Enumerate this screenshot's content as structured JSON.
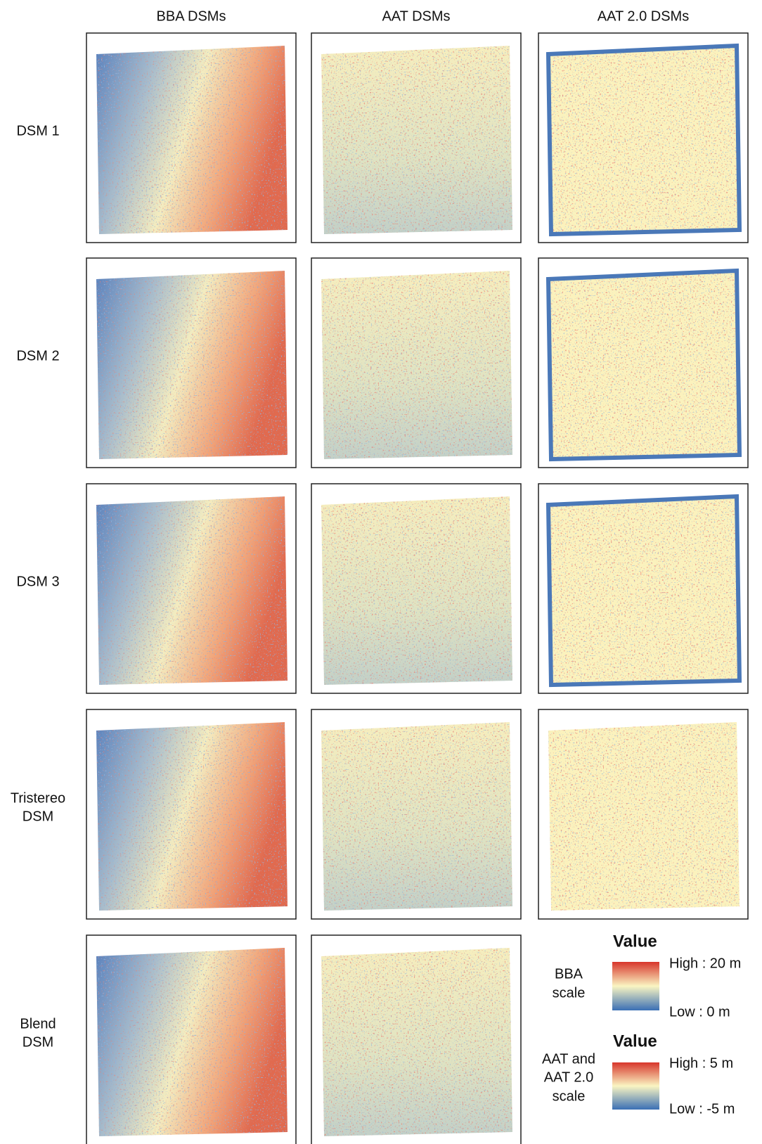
{
  "columns": [
    "BBA DSMs",
    "AAT DSMs",
    "AAT 2.0 DSMs"
  ],
  "rows": [
    {
      "label": [
        "DSM 1"
      ]
    },
    {
      "label": [
        "DSM 2"
      ]
    },
    {
      "label": [
        "DSM 3"
      ]
    },
    {
      "label": [
        "Tristereo",
        "DSM"
      ]
    },
    {
      "label": [
        "Blend",
        "DSM"
      ]
    }
  ],
  "legends": [
    {
      "title": "Value",
      "high": "High : 20 m",
      "low": "Low : 0 m",
      "scale": [
        "BBA",
        "scale"
      ]
    },
    {
      "title": "Value",
      "high": "High : 5 m",
      "low": "Low : -5 m",
      "scale": [
        "AAT and",
        "AAT 2.0",
        "scale"
      ]
    }
  ]
}
